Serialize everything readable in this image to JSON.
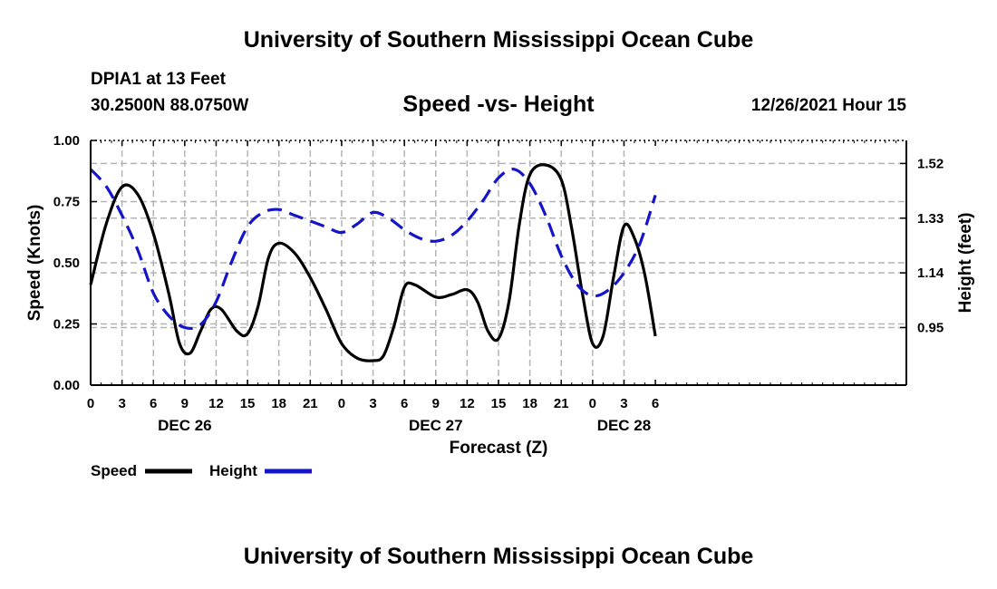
{
  "header": {
    "title": "University of Southern Mississippi Ocean Cube",
    "station": "DPIA1 at 13 Feet",
    "coords": "30.2500N  88.0750W",
    "datetime": "12/26/2021 Hour 15",
    "footer_title": "University of Southern Mississippi Ocean Cube"
  },
  "colors": {
    "speed": "#000000",
    "height": "#1414c8",
    "grid": "#b4b4b4"
  },
  "chart_data": {
    "type": "line",
    "title": "Speed -vs- Height",
    "xlabel": "Forecast (Z)",
    "ylabel": "Speed (Knots)",
    "y2label": "Height (feet)",
    "x_unit": "hours from DEC 26 00Z",
    "xlim": [
      -3,
      75
    ],
    "ylim": [
      0,
      1
    ],
    "y2lim": [
      0.75,
      1.6
    ],
    "grid": true,
    "legend_position": "bottom-left",
    "x_ticks": [
      {
        "x": -3,
        "label": "0"
      },
      {
        "x": 0,
        "label": "3"
      },
      {
        "x": 3,
        "label": "6"
      },
      {
        "x": 6,
        "label": "9"
      },
      {
        "x": 9,
        "label": "12"
      },
      {
        "x": 12,
        "label": "15"
      },
      {
        "x": 15,
        "label": "18"
      },
      {
        "x": 18,
        "label": "21"
      },
      {
        "x": 21,
        "label": "0"
      },
      {
        "x": 24,
        "label": "3"
      },
      {
        "x": 27,
        "label": "6"
      },
      {
        "x": 30,
        "label": "9"
      },
      {
        "x": 33,
        "label": "12"
      },
      {
        "x": 36,
        "label": "15"
      },
      {
        "x": 39,
        "label": "18"
      },
      {
        "x": 42,
        "label": "21"
      },
      {
        "x": 45,
        "label": "0"
      },
      {
        "x": 48,
        "label": "3"
      },
      {
        "x": 51,
        "label": "6"
      }
    ],
    "date_labels": [
      {
        "x": 6,
        "label": "DEC 26"
      },
      {
        "x": 30,
        "label": "DEC 27"
      },
      {
        "x": 48,
        "label": "DEC 28"
      }
    ],
    "y_ticks": [
      {
        "value": 0,
        "label": "0.00"
      },
      {
        "value": 0.25,
        "label": "0.25"
      },
      {
        "value": 0.5,
        "label": "0.50"
      },
      {
        "value": 0.75,
        "label": "0.75"
      },
      {
        "value": 1,
        "label": "1.00"
      }
    ],
    "y2_ticks": [
      {
        "value": 0.95,
        "label": "0.95"
      },
      {
        "value": 1.14,
        "label": "1.14"
      },
      {
        "value": 1.33,
        "label": "1.33"
      },
      {
        "value": 1.52,
        "label": "1.52"
      }
    ],
    "series": [
      {
        "name": "Speed",
        "axis": "left",
        "style": "solid",
        "points": [
          [
            -3,
            0.41
          ],
          [
            -1.5,
            0.66
          ],
          [
            0,
            0.81
          ],
          [
            1.5,
            0.78
          ],
          [
            3,
            0.62
          ],
          [
            4.5,
            0.37
          ],
          [
            5.5,
            0.17
          ],
          [
            6.5,
            0.13
          ],
          [
            7.5,
            0.22
          ],
          [
            8.5,
            0.31
          ],
          [
            9.5,
            0.31
          ],
          [
            11,
            0.22
          ],
          [
            12,
            0.21
          ],
          [
            13,
            0.32
          ],
          [
            14,
            0.52
          ],
          [
            15,
            0.58
          ],
          [
            16.5,
            0.54
          ],
          [
            18,
            0.44
          ],
          [
            19.5,
            0.31
          ],
          [
            21,
            0.17
          ],
          [
            22.5,
            0.11
          ],
          [
            24,
            0.1
          ],
          [
            25,
            0.12
          ],
          [
            26,
            0.24
          ],
          [
            27,
            0.4
          ],
          [
            28,
            0.41
          ],
          [
            30,
            0.36
          ],
          [
            31.5,
            0.37
          ],
          [
            33,
            0.39
          ],
          [
            34,
            0.34
          ],
          [
            35,
            0.22
          ],
          [
            36,
            0.19
          ],
          [
            37,
            0.34
          ],
          [
            38,
            0.66
          ],
          [
            39,
            0.86
          ],
          [
            40.5,
            0.9
          ],
          [
            42,
            0.84
          ],
          [
            43,
            0.64
          ],
          [
            44,
            0.38
          ],
          [
            45,
            0.17
          ],
          [
            46,
            0.2
          ],
          [
            47,
            0.44
          ],
          [
            48,
            0.65
          ],
          [
            49,
            0.6
          ],
          [
            50,
            0.45
          ],
          [
            51,
            0.2
          ]
        ]
      },
      {
        "name": "Height",
        "axis": "right",
        "style": "dashed",
        "points": [
          [
            -3,
            1.5
          ],
          [
            -1.5,
            1.44
          ],
          [
            0,
            1.34
          ],
          [
            1.5,
            1.22
          ],
          [
            3,
            1.07
          ],
          [
            4.5,
            0.99
          ],
          [
            6,
            0.95
          ],
          [
            7.5,
            0.96
          ],
          [
            9,
            1.04
          ],
          [
            10.5,
            1.18
          ],
          [
            12,
            1.3
          ],
          [
            13.5,
            1.35
          ],
          [
            15,
            1.36
          ],
          [
            16.5,
            1.34
          ],
          [
            18,
            1.32
          ],
          [
            19.5,
            1.3
          ],
          [
            21,
            1.28
          ],
          [
            22.5,
            1.31
          ],
          [
            24,
            1.35
          ],
          [
            25.5,
            1.33
          ],
          [
            27,
            1.29
          ],
          [
            28.5,
            1.26
          ],
          [
            30,
            1.25
          ],
          [
            31.5,
            1.27
          ],
          [
            33,
            1.32
          ],
          [
            34.5,
            1.39
          ],
          [
            36,
            1.47
          ],
          [
            37.5,
            1.5
          ],
          [
            39,
            1.45
          ],
          [
            40.5,
            1.34
          ],
          [
            42,
            1.2
          ],
          [
            43.5,
            1.1
          ],
          [
            45,
            1.06
          ],
          [
            46.5,
            1.08
          ],
          [
            48,
            1.14
          ],
          [
            49.5,
            1.24
          ],
          [
            51,
            1.41
          ]
        ]
      }
    ]
  },
  "legend": {
    "items": [
      {
        "label": "Speed",
        "color": "#000000",
        "style": "solid"
      },
      {
        "label": "Height",
        "color": "#1414c8",
        "style": "dashed"
      }
    ]
  }
}
